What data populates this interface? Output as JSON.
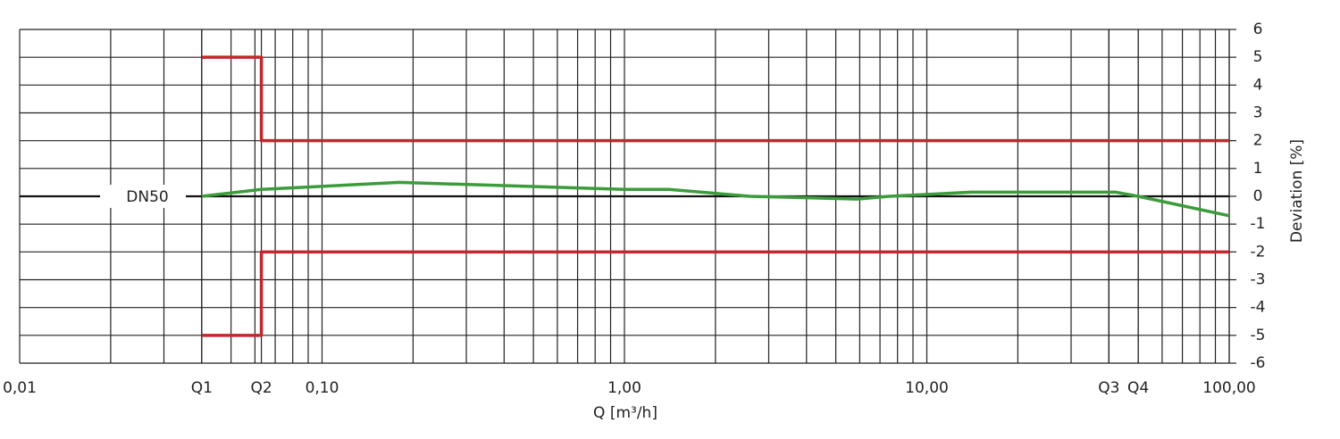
{
  "chart_data": {
    "type": "line",
    "annotation": "DN50",
    "xlabel": "Q [m³/h]",
    "ylabel": "Deviation [%]",
    "xscale": "log",
    "xlim": [
      0.01,
      100
    ],
    "xticks": [
      {
        "value": 0.01,
        "label": "0,01"
      },
      {
        "value": 0.04,
        "label": "Q1"
      },
      {
        "value": 0.063,
        "label": "Q2"
      },
      {
        "value": 0.1,
        "label": "0,10"
      },
      {
        "value": 1,
        "label": "1,00"
      },
      {
        "value": 10,
        "label": "10,00"
      },
      {
        "value": 40,
        "label": "Q3"
      },
      {
        "value": 50,
        "label": "Q4"
      },
      {
        "value": 100,
        "label": "100,00"
      }
    ],
    "ylim": [
      -6,
      6
    ],
    "yticks": [
      -6,
      -5,
      -4,
      -3,
      -2,
      -1,
      0,
      1,
      2,
      3,
      4,
      5,
      6
    ],
    "y_axis_side": "right",
    "grid": true,
    "minor_grid": true,
    "zero_line": true,
    "series": [
      {
        "color": "#c1272d",
        "x": [
          0.04,
          0.063,
          0.063,
          100
        ],
        "values": [
          5,
          5,
          2,
          2
        ]
      },
      {
        "color": "#c1272d",
        "x": [
          0.04,
          0.063,
          0.063,
          100
        ],
        "values": [
          -5,
          -5,
          -2,
          -2
        ]
      },
      {
        "color": "#3c9c3c",
        "x": [
          0.04,
          0.063,
          0.18,
          1.0,
          1.4,
          2.6,
          5.9,
          7.5,
          14,
          42,
          50,
          100
        ],
        "values": [
          0,
          0.25,
          0.5,
          0.25,
          0.25,
          0,
          -0.1,
          0,
          0.15,
          0.15,
          0,
          -0.7
        ]
      }
    ]
  }
}
